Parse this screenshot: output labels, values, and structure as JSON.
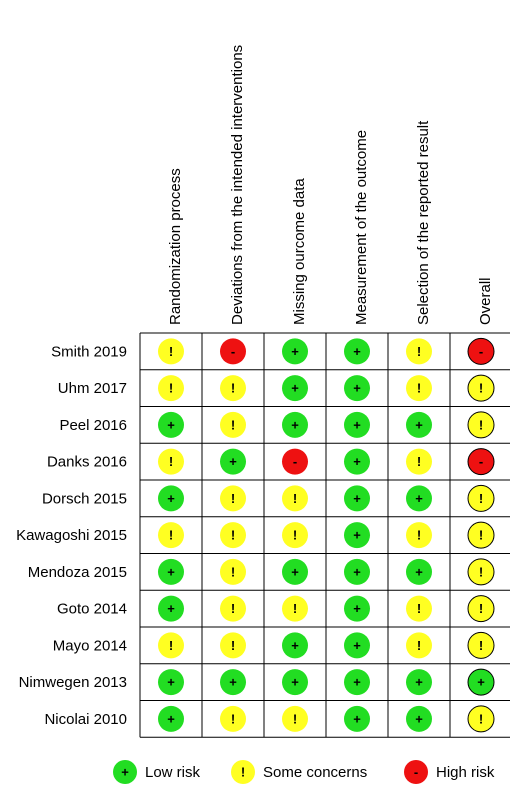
{
  "domains": [
    "Randomization process",
    "Deviations from the intended interventions",
    "Missing ourcome data",
    "Measurement of the outcome",
    "Selection of the reported result",
    "Overall"
  ],
  "studies": [
    {
      "name": "Smith 2019",
      "ratings": [
        "some",
        "high",
        "low",
        "low",
        "some",
        "high"
      ]
    },
    {
      "name": "Uhm 2017",
      "ratings": [
        "some",
        "some",
        "low",
        "low",
        "some",
        "some"
      ]
    },
    {
      "name": "Peel 2016",
      "ratings": [
        "low",
        "some",
        "low",
        "low",
        "low",
        "some"
      ]
    },
    {
      "name": "Danks 2016",
      "ratings": [
        "some",
        "low",
        "high",
        "low",
        "some",
        "high"
      ]
    },
    {
      "name": "Dorsch 2015",
      "ratings": [
        "low",
        "some",
        "some",
        "low",
        "low",
        "some"
      ]
    },
    {
      "name": "Kawagoshi 2015",
      "ratings": [
        "some",
        "some",
        "some",
        "low",
        "some",
        "some"
      ]
    },
    {
      "name": "Mendoza 2015",
      "ratings": [
        "low",
        "some",
        "low",
        "low",
        "low",
        "some"
      ]
    },
    {
      "name": "Goto 2014",
      "ratings": [
        "low",
        "some",
        "some",
        "low",
        "some",
        "some"
      ]
    },
    {
      "name": "Mayo 2014",
      "ratings": [
        "some",
        "some",
        "low",
        "low",
        "some",
        "some"
      ]
    },
    {
      "name": "Nimwegen 2013",
      "ratings": [
        "low",
        "low",
        "low",
        "low",
        "low",
        "low"
      ]
    },
    {
      "name": "Nicolai 2010",
      "ratings": [
        "low",
        "some",
        "some",
        "low",
        "low",
        "some"
      ]
    }
  ],
  "legend": [
    {
      "key": "low",
      "label": "Low risk"
    },
    {
      "key": "some",
      "label": "Some concerns"
    },
    {
      "key": "high",
      "label": "High risk"
    }
  ],
  "levels": {
    "low": {
      "symbol": "+",
      "color": "#22dd22"
    },
    "some": {
      "symbol": "!",
      "color": "#ffff22"
    },
    "high": {
      "symbol": "-",
      "color": "#ee1111"
    }
  }
}
